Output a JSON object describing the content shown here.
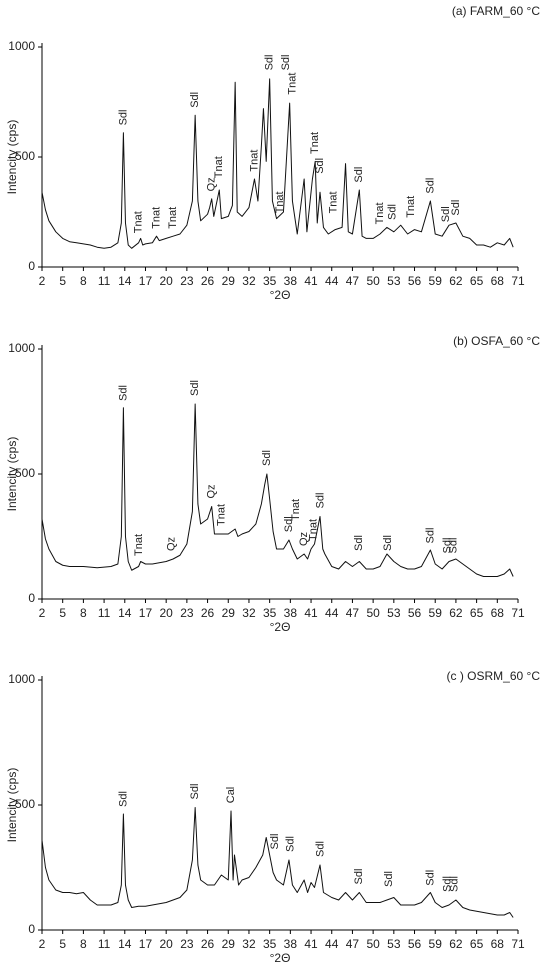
{
  "chart_data": [
    {
      "type": "line",
      "title": "(a) FARM_60 °C",
      "xlabel": "°2Θ",
      "ylabel": "Intencity (cps)",
      "color": "#111111",
      "xlim": [
        2,
        71
      ],
      "ylim": [
        0,
        1000
      ],
      "xticks": [
        2,
        5,
        8,
        11,
        14,
        17,
        20,
        23,
        26,
        29,
        32,
        35,
        38,
        41,
        44,
        47,
        50,
        53,
        56,
        59,
        62,
        65,
        68,
        71
      ],
      "yticks": [
        0,
        500,
        1000
      ],
      "x": [
        2,
        2.5,
        3,
        4,
        5,
        6,
        7,
        8,
        9,
        10,
        11,
        12,
        13,
        13.5,
        13.8,
        14.1,
        14.5,
        15,
        16,
        16.3,
        16.6,
        17,
        18,
        18.6,
        19,
        20,
        21,
        22,
        23,
        23.8,
        24.2,
        24.6,
        25,
        26,
        26.3,
        26.6,
        26.9,
        27.7,
        28,
        29,
        29.6,
        30,
        30.3,
        31,
        32,
        32.8,
        33.3,
        33.8,
        34.1,
        34.5,
        35,
        35.4,
        36,
        37,
        37.9,
        38.3,
        39,
        40,
        40.4,
        41.2,
        41.6,
        41.9,
        42.3,
        42.8,
        43.5,
        44.5,
        45.5,
        46,
        46.4,
        47,
        48,
        48.4,
        49,
        50,
        51,
        52,
        53,
        54,
        55,
        56,
        57,
        58.3,
        59,
        60,
        61,
        62,
        63,
        64,
        65,
        66,
        67,
        68,
        69,
        69.8,
        70.3
      ],
      "values": [
        340,
        260,
        210,
        160,
        130,
        115,
        110,
        105,
        100,
        90,
        85,
        90,
        110,
        200,
        610,
        200,
        100,
        85,
        110,
        130,
        100,
        105,
        110,
        140,
        120,
        130,
        140,
        150,
        190,
        300,
        690,
        300,
        210,
        240,
        270,
        310,
        230,
        350,
        220,
        230,
        280,
        840,
        250,
        230,
        270,
        400,
        300,
        550,
        720,
        480,
        855,
        300,
        220,
        250,
        745,
        300,
        150,
        400,
        160,
        400,
        480,
        200,
        340,
        180,
        150,
        170,
        180,
        470,
        160,
        150,
        350,
        140,
        130,
        130,
        150,
        180,
        160,
        190,
        150,
        170,
        160,
        300,
        150,
        140,
        190,
        200,
        140,
        130,
        100,
        100,
        90,
        110,
        100,
        130,
        90
      ],
      "annotations": [
        {
          "text": "Sdl",
          "x": 13.8,
          "y": 630
        },
        {
          "text": "Tnat",
          "x": 16,
          "y": 140
        },
        {
          "text": "Tnat",
          "x": 18.6,
          "y": 160
        },
        {
          "text": "Tnat",
          "x": 21,
          "y": 160
        },
        {
          "text": "Sdl",
          "x": 24.2,
          "y": 710
        },
        {
          "text": "Qz",
          "x": 26.6,
          "y": 330
        },
        {
          "text": "Tnat",
          "x": 27.7,
          "y": 390
        },
        {
          "text": "Tnat",
          "x": 32.8,
          "y": 420
        },
        {
          "text": "Sdl",
          "x": 35,
          "y": 880
        },
        {
          "text": "Tnat",
          "x": 36.5,
          "y": 230
        },
        {
          "text": "Sdl",
          "x": 37.4,
          "y": 880
        },
        {
          "text": "Tnat",
          "x": 38.3,
          "y": 770
        },
        {
          "text": "Tnat",
          "x": 41.6,
          "y": 500
        },
        {
          "text": "Sdl",
          "x": 42.3,
          "y": 410
        },
        {
          "text": "Tnat",
          "x": 44.3,
          "y": 230
        },
        {
          "text": "Sdl",
          "x": 48,
          "y": 370
        },
        {
          "text": "Tnat",
          "x": 51,
          "y": 180
        },
        {
          "text": "Sdl",
          "x": 52.8,
          "y": 200
        },
        {
          "text": "Tnat",
          "x": 55.5,
          "y": 210
        },
        {
          "text": "Sdl",
          "x": 58.3,
          "y": 320
        },
        {
          "text": "Sdl",
          "x": 60.6,
          "y": 190
        },
        {
          "text": "Sdl",
          "x": 62,
          "y": 220
        }
      ]
    },
    {
      "type": "line",
      "title": "(b) OSFA_60 °C",
      "xlabel": "°2Θ",
      "ylabel": "Intencity (cps)",
      "color": "#111111",
      "xlim": [
        2,
        71
      ],
      "ylim": [
        0,
        1000
      ],
      "xticks": [
        2,
        5,
        8,
        11,
        14,
        17,
        20,
        23,
        26,
        29,
        32,
        35,
        38,
        41,
        44,
        47,
        50,
        53,
        56,
        59,
        62,
        65,
        68,
        71
      ],
      "yticks": [
        0,
        500,
        1000
      ],
      "x": [
        2,
        2.5,
        3,
        4,
        5,
        6,
        8,
        10,
        12,
        13,
        13.5,
        13.8,
        14.1,
        14.5,
        15,
        16,
        16.3,
        17,
        18,
        19,
        20,
        21,
        22,
        23,
        23.8,
        24.2,
        24.6,
        25,
        26,
        26.6,
        27,
        28,
        29,
        30,
        30.4,
        31,
        32,
        33,
        33.8,
        34.3,
        34.6,
        35,
        35.5,
        36,
        37,
        37.8,
        38.3,
        39,
        40,
        40.5,
        41,
        41.5,
        42.3,
        42.7,
        43,
        44,
        45,
        46,
        47,
        48,
        49,
        50,
        51,
        52,
        53,
        54,
        55,
        56,
        57,
        58.3,
        59,
        60,
        61,
        62,
        63,
        64,
        65,
        66,
        67,
        68,
        69,
        69.8,
        70.3
      ],
      "values": [
        320,
        240,
        200,
        150,
        135,
        130,
        130,
        125,
        130,
        140,
        250,
        765,
        250,
        150,
        115,
        130,
        150,
        140,
        140,
        145,
        150,
        160,
        175,
        220,
        350,
        780,
        380,
        300,
        320,
        370,
        260,
        260,
        260,
        280,
        250,
        260,
        270,
        300,
        380,
        460,
        500,
        400,
        270,
        200,
        200,
        236,
        200,
        160,
        180,
        160,
        200,
        220,
        330,
        200,
        180,
        130,
        120,
        150,
        130,
        150,
        120,
        120,
        130,
        180,
        150,
        130,
        120,
        120,
        130,
        196,
        140,
        120,
        150,
        160,
        140,
        120,
        100,
        90,
        90,
        90,
        100,
        120,
        90
      ],
      "annotations": [
        {
          "text": "Sdl",
          "x": 13.8,
          "y": 780
        },
        {
          "text": "Tnat",
          "x": 16.1,
          "y": 160
        },
        {
          "text": "Qz",
          "x": 20.8,
          "y": 180
        },
        {
          "text": "Sdl",
          "x": 24.2,
          "y": 800
        },
        {
          "text": "Qz",
          "x": 26.6,
          "y": 390
        },
        {
          "text": "Tnat",
          "x": 28,
          "y": 280
        },
        {
          "text": "Sdl",
          "x": 34.6,
          "y": 520
        },
        {
          "text": "Sdl",
          "x": 37.8,
          "y": 255
        },
        {
          "text": "Tnat",
          "x": 38.8,
          "y": 300
        },
        {
          "text": "Qz",
          "x": 40,
          "y": 200
        },
        {
          "text": "Tnat",
          "x": 41.4,
          "y": 220
        },
        {
          "text": "Sdl",
          "x": 42.4,
          "y": 350
        },
        {
          "text": "Sdl",
          "x": 48,
          "y": 180
        },
        {
          "text": "Sdl",
          "x": 52.2,
          "y": 180
        },
        {
          "text": "Sdl",
          "x": 58.3,
          "y": 210
        },
        {
          "text": "Sdl",
          "x": 60.8,
          "y": 170
        },
        {
          "text": "Sdl",
          "x": 61.7,
          "y": 170
        }
      ]
    },
    {
      "type": "line",
      "title": "(c ) OSRM_60 °C",
      "xlabel": "°2Θ",
      "ylabel": "Intencity (cps)",
      "color": "#111111",
      "xlim": [
        2,
        71
      ],
      "ylim": [
        0,
        1000
      ],
      "xticks": [
        2,
        5,
        8,
        11,
        14,
        17,
        20,
        23,
        26,
        29,
        32,
        35,
        38,
        41,
        44,
        47,
        50,
        53,
        56,
        59,
        62,
        65,
        68,
        71
      ],
      "yticks": [
        0,
        500,
        1000
      ],
      "x": [
        2,
        2.5,
        3,
        4,
        5,
        6,
        7,
        8,
        9,
        10,
        11,
        12,
        13,
        13.5,
        13.8,
        14.1,
        14.5,
        15,
        16,
        17,
        18,
        20,
        22,
        23,
        23.8,
        24.2,
        24.6,
        25,
        26,
        27,
        28,
        29,
        29.4,
        29.7,
        29.9,
        30.5,
        31,
        32,
        33,
        34,
        34.5,
        35,
        35.5,
        36,
        37,
        37.8,
        38.3,
        39,
        40,
        40.5,
        41,
        41.5,
        42.3,
        42.8,
        44,
        45,
        46,
        47,
        48,
        49,
        50,
        51,
        52,
        53,
        54,
        55,
        56,
        57,
        58.3,
        59,
        60,
        61,
        62,
        63,
        64,
        65,
        66,
        67,
        68,
        69,
        69.8,
        70.3
      ],
      "values": [
        360,
        250,
        200,
        160,
        150,
        150,
        145,
        150,
        120,
        100,
        100,
        100,
        110,
        180,
        464,
        180,
        120,
        90,
        95,
        95,
        100,
        110,
        130,
        160,
        280,
        490,
        260,
        200,
        180,
        180,
        220,
        200,
        476,
        200,
        300,
        180,
        200,
        210,
        250,
        300,
        370,
        300,
        230,
        200,
        180,
        280,
        180,
        150,
        200,
        150,
        190,
        170,
        260,
        150,
        130,
        120,
        150,
        120,
        150,
        110,
        110,
        110,
        120,
        130,
        100,
        100,
        100,
        110,
        150,
        110,
        90,
        100,
        120,
        90,
        80,
        75,
        70,
        65,
        60,
        60,
        70,
        50
      ],
      "annotations": [
        {
          "text": "Sdl",
          "x": 13.8,
          "y": 480
        },
        {
          "text": "Sdl",
          "x": 24.2,
          "y": 510
        },
        {
          "text": "Cal",
          "x": 29.4,
          "y": 495
        },
        {
          "text": "Sdl",
          "x": 35.8,
          "y": 310
        },
        {
          "text": "Sdl",
          "x": 38,
          "y": 300
        },
        {
          "text": "Sdl",
          "x": 42.4,
          "y": 280
        },
        {
          "text": "Sdl",
          "x": 48,
          "y": 170
        },
        {
          "text": "Sdl",
          "x": 52.3,
          "y": 160
        },
        {
          "text": "Sdl",
          "x": 58.3,
          "y": 165
        },
        {
          "text": "Sdl",
          "x": 60.8,
          "y": 140
        },
        {
          "text": "Sdl",
          "x": 61.8,
          "y": 140
        }
      ]
    }
  ]
}
